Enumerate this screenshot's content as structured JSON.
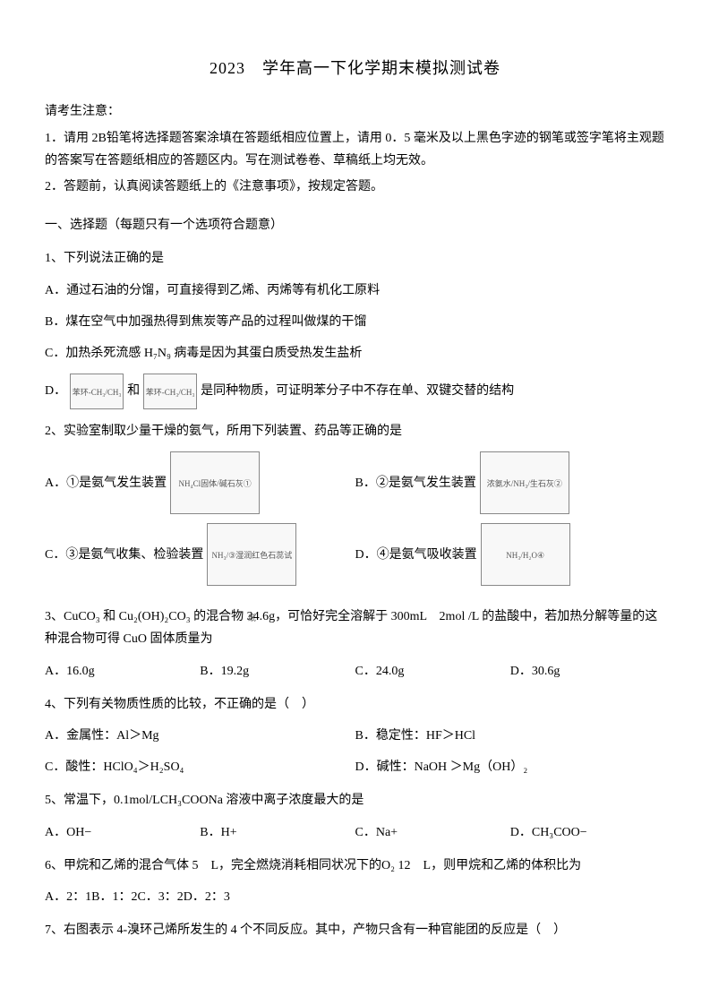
{
  "title": "2023　学年高一下化学期末模拟测试卷",
  "notice": {
    "header": "请考生注意：",
    "item1": "1．请用 2B铅笔将选择题答案涂填在答题纸相应位置上，请用 0．5 毫米及以上黑色字迹的钢笔或签字笔将主观题的答案写在答题纸相应的答题区内。写在测试卷卷、草稿纸上均无效。",
    "item2": "2．答题前，认真阅读答题纸上的《注意事项》，按规定答题。"
  },
  "section1": "一、选择题（每题只有一个选项符合题意）",
  "q1": {
    "stem": "1、下列说法正确的是",
    "A": "A．通过石油的分馏，可直接得到乙烯、丙烯等有机化工原料",
    "B": "B．煤在空气中加强热得到焦炭等产品的过程叫做煤的干馏",
    "C": "C．加热杀死流感 H₇N₉ 病毒是因为其蛋白质受热发生盐析",
    "D_pre": "D．",
    "D_mid": "和",
    "D_post": "是同种物质，可证明苯分子中不存在单、双键交替的结构",
    "dia1": "苯环-CH₃/CH₃",
    "dia2": "苯环-CH₃/CH₃"
  },
  "q2": {
    "stem": "2、实验室制取少量干燥的氨气，所用下列装置、药品等正确的是",
    "A": "A．①是氨气发生装置",
    "B": "B．②是氨气发生装置",
    "C": "C．③是氨气收集、检验装置",
    "D": "D．④是氨气吸收装置",
    "diaA": "NH₄Cl固体/碱石灰①",
    "diaB": "浓氨水/NH₃/生石灰②",
    "diaC": "NH₃/③湿润红色石蕊试纸",
    "diaD": "NH₃/H₂O④"
  },
  "q3": {
    "stem": "3、CuCO₃ 和 Cu₂(OH)₂CO₃ 的混合物 34.6g，可恰好完全溶解于 300mL　2mol /L 的盐酸中，若加热分解等量的这种混合物可得 CuO 固体质量为",
    "A": "A．16.0g",
    "B": "B．19.2g",
    "C": "C．24.0g",
    "D": "D．30.6g"
  },
  "q4": {
    "stem": "4、下列有关物质性质的比较，不正确的是（　）",
    "A": "A．金属性：Al＞Mg",
    "B": "B．稳定性：HF＞HCl",
    "C": "C．酸性：HClO₄＞H₂SO₄",
    "D": "D．碱性：NaOH ＞Mg（OH）₂"
  },
  "q5": {
    "stem": "5、常温下，0.1mol/LCH₃COONa 溶液中离子浓度最大的是",
    "A": "A．OH−",
    "B": "B．H+",
    "C": "C．Na+",
    "D": "D．CH₃COO−"
  },
  "q6": {
    "stem": "6、甲烷和乙烯的混合气体 5　L，完全燃烧消耗相同状况下的O₂ 12　L，则甲烷和乙烯的体积比为",
    "opts": "A．2：1B．1：2C．3：2D．2：3"
  },
  "q7": {
    "stem": "7、右图表示 4-溴环己烯所发生的 4 个不同反应。其中，产物只含有一种官能团的反应是（　）"
  }
}
